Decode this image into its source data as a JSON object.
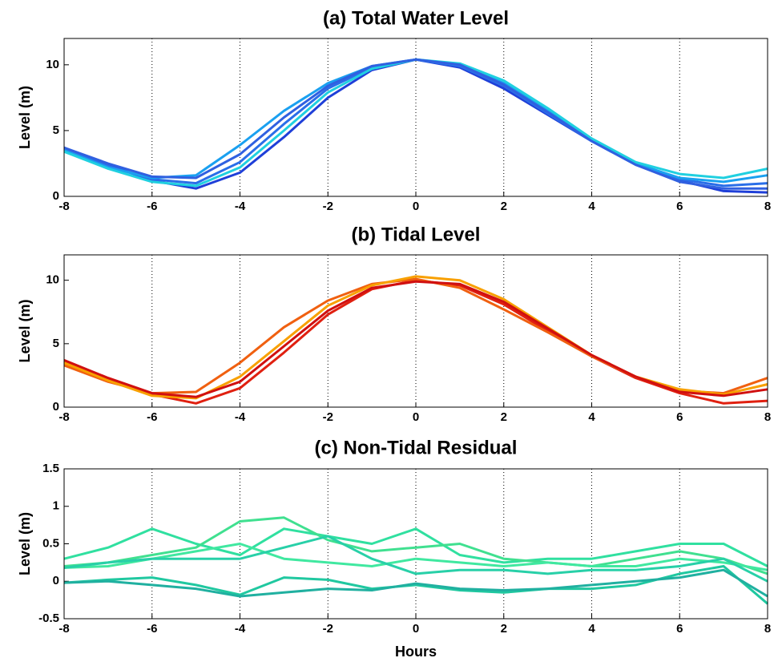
{
  "chart_data": [
    {
      "type": "line",
      "title": "(a) Total Water Level",
      "ylabel": "Level (m)",
      "x": [
        -8,
        -7,
        -6,
        -5,
        -4,
        -3,
        -2,
        -1,
        0,
        1,
        2,
        3,
        4,
        5,
        6,
        7,
        8
      ],
      "xlim": [
        -8,
        8
      ],
      "xticks": [
        -8,
        -6,
        -4,
        -2,
        0,
        2,
        4,
        6,
        8
      ],
      "ylim": [
        0,
        12
      ],
      "yticks": [
        0,
        5,
        10
      ],
      "grid": "x",
      "series": [
        {
          "color": "#1f3fd8",
          "values": [
            3.7,
            2.4,
            1.2,
            0.6,
            1.8,
            4.5,
            7.5,
            9.6,
            10.4,
            9.8,
            8.2,
            6.2,
            4.2,
            2.5,
            1.2,
            0.4,
            0.3
          ]
        },
        {
          "color": "#2a6ee8",
          "values": [
            3.6,
            2.3,
            1.3,
            1.0,
            2.6,
            5.5,
            8.2,
            9.8,
            10.4,
            9.9,
            8.4,
            6.3,
            4.2,
            2.4,
            1.3,
            0.8,
            1.0
          ]
        },
        {
          "color": "#1aa0f0",
          "values": [
            3.5,
            2.2,
            1.4,
            1.6,
            3.9,
            6.5,
            8.6,
            9.9,
            10.4,
            10.0,
            8.6,
            6.5,
            4.3,
            2.5,
            1.4,
            1.1,
            1.6
          ]
        },
        {
          "color": "#20d0e0",
          "values": [
            3.4,
            2.1,
            1.1,
            0.8,
            2.2,
            5.0,
            7.9,
            9.7,
            10.4,
            10.1,
            8.8,
            6.7,
            4.4,
            2.6,
            1.7,
            1.4,
            2.1
          ]
        },
        {
          "color": "#3060e0",
          "values": [
            3.7,
            2.5,
            1.5,
            1.4,
            3.2,
            6.0,
            8.4,
            9.9,
            10.4,
            10.0,
            8.5,
            6.4,
            4.2,
            2.4,
            1.1,
            0.6,
            0.6
          ]
        }
      ]
    },
    {
      "type": "line",
      "title": "(b) Tidal Level",
      "ylabel": "Level (m)",
      "x": [
        -8,
        -7,
        -6,
        -5,
        -4,
        -3,
        -2,
        -1,
        0,
        1,
        2,
        3,
        4,
        5,
        6,
        7,
        8
      ],
      "xlim": [
        -8,
        8
      ],
      "xticks": [
        -8,
        -6,
        -4,
        -2,
        0,
        2,
        4,
        6,
        8
      ],
      "ylim": [
        0,
        12
      ],
      "yticks": [
        0,
        5,
        10
      ],
      "grid": "x",
      "series": [
        {
          "color": "#e02010",
          "values": [
            3.6,
            2.2,
            1.0,
            0.3,
            1.5,
            4.3,
            7.3,
            9.3,
            10.0,
            9.6,
            8.1,
            6.0,
            4.0,
            2.3,
            1.1,
            0.3,
            0.5
          ]
        },
        {
          "color": "#f06010",
          "values": [
            3.3,
            2.0,
            1.1,
            1.2,
            3.5,
            6.3,
            8.4,
            9.7,
            10.1,
            9.4,
            7.7,
            5.9,
            4.0,
            2.4,
            1.3,
            1.1,
            2.3
          ]
        },
        {
          "color": "#f8a000",
          "values": [
            3.5,
            2.1,
            0.9,
            0.7,
            2.4,
            5.2,
            8.0,
            9.6,
            10.3,
            10.0,
            8.5,
            6.3,
            4.1,
            2.4,
            1.4,
            1.0,
            1.8
          ]
        },
        {
          "color": "#d01010",
          "values": [
            3.7,
            2.3,
            1.1,
            0.8,
            2.0,
            4.8,
            7.6,
            9.4,
            9.9,
            9.7,
            8.3,
            6.2,
            4.1,
            2.4,
            1.2,
            0.9,
            1.4
          ]
        }
      ]
    },
    {
      "type": "line",
      "title": "(c) Non-Tidal Residual",
      "ylabel": "Level (m)",
      "xlabel": "Hours",
      "x": [
        -8,
        -7,
        -6,
        -5,
        -4,
        -3,
        -2,
        -1,
        0,
        1,
        2,
        3,
        4,
        5,
        6,
        7,
        8
      ],
      "xlim": [
        -8,
        8
      ],
      "xticks": [
        -8,
        -6,
        -4,
        -2,
        0,
        2,
        4,
        6,
        8
      ],
      "ylim": [
        -0.5,
        1.5
      ],
      "yticks": [
        -0.5,
        0,
        0.5,
        1,
        1.5
      ],
      "grid": "x",
      "series": [
        {
          "color": "#30e0a0",
          "values": [
            0.3,
            0.45,
            0.7,
            0.5,
            0.35,
            0.7,
            0.6,
            0.5,
            0.7,
            0.35,
            0.25,
            0.3,
            0.3,
            0.4,
            0.5,
            0.5,
            0.2
          ]
        },
        {
          "color": "#40e090",
          "values": [
            0.2,
            0.25,
            0.35,
            0.45,
            0.8,
            0.85,
            0.55,
            0.4,
            0.45,
            0.5,
            0.3,
            0.25,
            0.2,
            0.3,
            0.4,
            0.3,
            0.1
          ]
        },
        {
          "color": "#20c8a0",
          "values": [
            -0.02,
            0.02,
            0.05,
            -0.05,
            -0.18,
            0.05,
            0.02,
            -0.1,
            -0.05,
            -0.12,
            -0.15,
            -0.1,
            -0.1,
            -0.05,
            0.1,
            0.2,
            -0.3
          ]
        },
        {
          "color": "#20b0a0",
          "values": [
            -0.02,
            0.0,
            -0.05,
            -0.1,
            -0.2,
            -0.15,
            -0.1,
            -0.12,
            -0.03,
            -0.1,
            -0.12,
            -0.1,
            -0.05,
            0.0,
            0.05,
            0.15,
            -0.2
          ]
        },
        {
          "color": "#40e8a0",
          "values": [
            0.18,
            0.2,
            0.3,
            0.4,
            0.5,
            0.3,
            0.25,
            0.2,
            0.3,
            0.25,
            0.2,
            0.25,
            0.2,
            0.2,
            0.3,
            0.25,
            0.15
          ]
        },
        {
          "color": "#28d0a8",
          "values": [
            0.18,
            0.25,
            0.3,
            0.3,
            0.3,
            0.45,
            0.6,
            0.3,
            0.1,
            0.15,
            0.15,
            0.1,
            0.15,
            0.15,
            0.2,
            0.3,
            0.0
          ]
        }
      ]
    }
  ]
}
